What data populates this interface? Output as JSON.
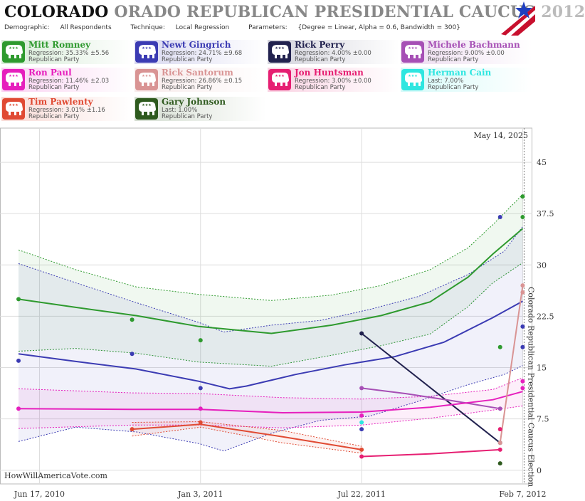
{
  "header": {
    "title_part1": "COLORADO ",
    "title_part2": "ORADO REPUBLICAN PRESIDENTIAL CAUCUS ",
    "title_part3": "2012",
    "demographic_label": "Demographic:",
    "demographic_value": "All Respondents",
    "technique_label": "Technique:",
    "technique_value": "Local Regression",
    "parameters_label": "Parameters:",
    "parameters_value": "{Degree = Linear, Alpha = 0.6, Bandwidth = 300}"
  },
  "candidates": [
    {
      "name": "Mitt Romney",
      "stat": "Regression: 35.33% ±5.56",
      "party": "Republican Party",
      "color": "#2e9a2e"
    },
    {
      "name": "Newt Gingrich",
      "stat": "Regression: 24.71% ±9.68",
      "party": "Republican Party",
      "color": "#3b3bb3"
    },
    {
      "name": "Rick Perry",
      "stat": "Regression: 4.00% ±0.00",
      "party": "Republican Party",
      "color": "#22224f"
    },
    {
      "name": "Michele Bachmann",
      "stat": "Regression: 9.00% ±0.00",
      "party": "Republican Party",
      "color": "#a64fb5"
    },
    {
      "name": "Ron Paul",
      "stat": "Regression: 11.46% ±2.03",
      "party": "Republican Party",
      "color": "#e61fbd"
    },
    {
      "name": "Rick Santorum",
      "stat": "Regression: 26.86% ±0.15",
      "party": "Republican Party",
      "color": "#d99494"
    },
    {
      "name": "Jon Huntsman",
      "stat": "Regression: 3.00% ±0.00",
      "party": "Republican Party",
      "color": "#e61f72"
    },
    {
      "name": "Herman Cain",
      "stat": "Last: 7.00%",
      "party": "Republican Party",
      "color": "#2ee6e0"
    },
    {
      "name": "Tim Pawlenty",
      "stat": "Regression: 3.01% ±1.16",
      "party": "Republican Party",
      "color": "#e04a33"
    },
    {
      "name": "Gary Johnson",
      "stat": "Last: 1.00%",
      "party": "Republican Party",
      "color": "#2e5a1e"
    }
  ],
  "chart_data": {
    "type": "line",
    "x_tick_labels": [
      "Jun 17, 2010",
      "Jan 3, 2011",
      "Jul 22, 2011",
      "Feb 7, 2012"
    ],
    "y_ticks": [
      0,
      7.5,
      15,
      22.5,
      30,
      37.5,
      45
    ],
    "ylim": [
      -2,
      50
    ],
    "xlim": [
      "2010-04-29",
      "2012-02-19"
    ],
    "today_label": "May 14, 2025",
    "election_label": "Colorado Republican Presidential Caucus Election",
    "watermark": "HowWillAmericaVote.com",
    "series": [
      {
        "name": "Mitt Romney",
        "color": "#2e9a2e",
        "line": [
          [
            "2010-05-22",
            25
          ],
          [
            "2010-08-01",
            23.8
          ],
          [
            "2010-10-15",
            22.6
          ],
          [
            "2011-01-01",
            21
          ],
          [
            "2011-04-01",
            20
          ],
          [
            "2011-06-15",
            21.2
          ],
          [
            "2011-08-15",
            22.6
          ],
          [
            "2011-10-15",
            24.6
          ],
          [
            "2011-12-01",
            28.2
          ],
          [
            "2012-01-01",
            31.6
          ],
          [
            "2012-02-07",
            35.3
          ]
        ],
        "upper": [
          [
            "2010-05-22",
            32.2
          ],
          [
            "2010-08-01",
            29.3
          ],
          [
            "2010-10-15",
            26.8
          ],
          [
            "2011-01-01",
            25.7
          ],
          [
            "2011-04-01",
            24.8
          ],
          [
            "2011-06-15",
            25.6
          ],
          [
            "2011-08-15",
            27
          ],
          [
            "2011-10-15",
            29.3
          ],
          [
            "2011-12-01",
            32.5
          ],
          [
            "2012-01-01",
            35.9
          ],
          [
            "2012-02-07",
            40.3
          ]
        ],
        "lower": [
          [
            "2010-05-22",
            17.4
          ],
          [
            "2010-08-01",
            17.8
          ],
          [
            "2010-10-15",
            17.1
          ],
          [
            "2011-01-01",
            15.8
          ],
          [
            "2011-04-01",
            15.2
          ],
          [
            "2011-06-15",
            16.8
          ],
          [
            "2011-08-15",
            18.2
          ],
          [
            "2011-10-15",
            19.9
          ],
          [
            "2011-12-01",
            23.9
          ],
          [
            "2012-01-01",
            27.4
          ],
          [
            "2012-02-07",
            30.3
          ]
        ],
        "points": [
          [
            "2010-05-22",
            25
          ],
          [
            "2010-10-10",
            22
          ],
          [
            "2011-01-03",
            19
          ],
          [
            "2012-01-10",
            18
          ],
          [
            "2012-02-07",
            37
          ],
          [
            "2012-02-07",
            40
          ]
        ]
      },
      {
        "name": "Newt Gingrich",
        "color": "#3b3bb3",
        "line": [
          [
            "2010-05-22",
            17
          ],
          [
            "2010-08-01",
            15.9
          ],
          [
            "2010-10-15",
            14.8
          ],
          [
            "2011-01-01",
            13
          ],
          [
            "2011-02-08",
            11.9
          ],
          [
            "2011-03-01",
            12.3
          ],
          [
            "2011-05-01",
            14
          ],
          [
            "2011-07-01",
            15.4
          ],
          [
            "2011-09-01",
            16.6
          ],
          [
            "2011-11-01",
            18.7
          ],
          [
            "2012-01-01",
            22.3
          ],
          [
            "2012-02-07",
            24.7
          ]
        ],
        "upper": [
          [
            "2010-05-22",
            30.2
          ],
          [
            "2010-08-01",
            27.4
          ],
          [
            "2010-10-15",
            24.5
          ],
          [
            "2011-01-01",
            21.6
          ],
          [
            "2011-02-01",
            20.2
          ],
          [
            "2011-04-01",
            21.2
          ],
          [
            "2011-06-01",
            21.9
          ],
          [
            "2011-08-01",
            23.5
          ],
          [
            "2011-10-01",
            25.4
          ],
          [
            "2011-12-01",
            28.6
          ],
          [
            "2012-01-15",
            32
          ],
          [
            "2012-02-07",
            35.6
          ]
        ],
        "lower": [
          [
            "2010-05-22",
            4.2
          ],
          [
            "2010-08-01",
            6.3
          ],
          [
            "2010-10-15",
            5.6
          ],
          [
            "2011-01-01",
            3.9
          ],
          [
            "2011-02-01",
            2.8
          ],
          [
            "2011-04-01",
            5.4
          ],
          [
            "2011-06-01",
            7.3
          ],
          [
            "2011-08-01",
            7.9
          ],
          [
            "2011-10-01",
            10.1
          ],
          [
            "2011-12-01",
            12.5
          ],
          [
            "2012-01-15",
            14
          ],
          [
            "2012-02-07",
            15.3
          ]
        ],
        "points": [
          [
            "2010-05-22",
            16
          ],
          [
            "2010-10-10",
            17
          ],
          [
            "2011-01-03",
            12
          ],
          [
            "2011-07-22",
            6
          ],
          [
            "2012-01-10",
            37
          ],
          [
            "2012-02-07",
            21
          ],
          [
            "2012-02-07",
            18
          ]
        ]
      },
      {
        "name": "Rick Perry",
        "color": "#22224f",
        "line": [
          [
            "2011-07-22",
            20
          ],
          [
            "2012-01-10",
            4
          ]
        ],
        "points": [
          [
            "2011-07-22",
            20
          ],
          [
            "2012-01-10",
            4
          ]
        ]
      },
      {
        "name": "Michele Bachmann",
        "color": "#a64fb5",
        "line": [
          [
            "2011-07-22",
            12
          ],
          [
            "2011-09-15",
            11.2
          ],
          [
            "2011-11-15",
            10.1
          ],
          [
            "2012-01-10",
            9
          ]
        ],
        "points": [
          [
            "2011-07-22",
            12
          ],
          [
            "2012-01-10",
            9
          ]
        ]
      },
      {
        "name": "Ron Paul",
        "color": "#e61fbd",
        "line": [
          [
            "2010-05-22",
            9
          ],
          [
            "2010-10-10",
            8.9
          ],
          [
            "2011-01-03",
            8.9
          ],
          [
            "2011-04-15",
            8.4
          ],
          [
            "2011-07-22",
            8.5
          ],
          [
            "2011-10-15",
            9.2
          ],
          [
            "2012-01-01",
            10.3
          ],
          [
            "2012-02-07",
            11.5
          ]
        ],
        "upper": [
          [
            "2010-05-22",
            11.9
          ],
          [
            "2010-10-10",
            11.3
          ],
          [
            "2011-01-03",
            11.2
          ],
          [
            "2011-04-15",
            10.6
          ],
          [
            "2011-07-22",
            10.4
          ],
          [
            "2011-10-15",
            10.8
          ],
          [
            "2012-01-01",
            11.8
          ],
          [
            "2012-02-07",
            13.5
          ]
        ],
        "lower": [
          [
            "2010-05-22",
            6.1
          ],
          [
            "2010-10-10",
            6.6
          ],
          [
            "2011-01-03",
            6.6
          ],
          [
            "2011-04-15",
            6.2
          ],
          [
            "2011-07-22",
            6.6
          ],
          [
            "2011-10-15",
            7.6
          ],
          [
            "2012-01-01",
            8.8
          ],
          [
            "2012-02-07",
            9.4
          ]
        ],
        "points": [
          [
            "2010-05-22",
            9
          ],
          [
            "2011-01-03",
            9
          ],
          [
            "2011-07-22",
            8
          ],
          [
            "2012-02-07",
            12
          ],
          [
            "2012-02-07",
            13
          ]
        ]
      },
      {
        "name": "Rick Santorum",
        "color": "#d99494",
        "line": [
          [
            "2012-01-10",
            4
          ],
          [
            "2012-02-07",
            26.9
          ]
        ],
        "points": [
          [
            "2012-01-10",
            4
          ],
          [
            "2012-02-07",
            26
          ],
          [
            "2012-02-07",
            27
          ]
        ]
      },
      {
        "name": "Jon Huntsman",
        "color": "#e61f72",
        "line": [
          [
            "2011-07-22",
            2
          ],
          [
            "2011-10-15",
            2.4
          ],
          [
            "2012-01-10",
            3
          ]
        ],
        "points": [
          [
            "2011-07-22",
            2
          ],
          [
            "2012-01-10",
            3
          ],
          [
            "2012-01-10",
            6
          ]
        ]
      },
      {
        "name": "Herman Cain",
        "color": "#2ee6e0",
        "line": [],
        "points": [
          [
            "2011-07-22",
            7
          ]
        ]
      },
      {
        "name": "Tim Pawlenty",
        "color": "#e04a33",
        "line": [
          [
            "2010-10-10",
            6
          ],
          [
            "2011-01-03",
            6.7
          ],
          [
            "2011-04-15",
            4.9
          ],
          [
            "2011-07-22",
            3
          ]
        ],
        "upper": [
          [
            "2010-10-10",
            7
          ],
          [
            "2011-01-03",
            7.1
          ],
          [
            "2011-04-15",
            5.8
          ],
          [
            "2011-07-22",
            3.5
          ]
        ],
        "lower": [
          [
            "2010-10-10",
            5
          ],
          [
            "2011-01-03",
            6.3
          ],
          [
            "2011-04-15",
            4
          ],
          [
            "2011-07-22",
            2.5
          ]
        ],
        "points": [
          [
            "2010-10-10",
            6
          ],
          [
            "2011-01-03",
            7
          ],
          [
            "2011-07-22",
            3
          ]
        ]
      },
      {
        "name": "Gary Johnson",
        "color": "#2e5a1e",
        "line": [],
        "points": [
          [
            "2012-01-10",
            1
          ]
        ]
      }
    ]
  }
}
